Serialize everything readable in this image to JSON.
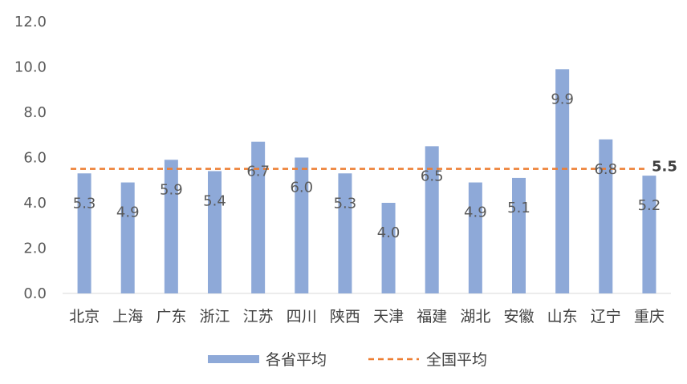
{
  "chart_data": {
    "type": "bar",
    "categories": [
      "北京",
      "上海",
      "广东",
      "浙江",
      "江苏",
      "四川",
      "陕西",
      "天津",
      "福建",
      "湖北",
      "安徽",
      "山东",
      "辽宁",
      "重庆"
    ],
    "series": [
      {
        "name": "各省平均",
        "type": "bar",
        "values": [
          5.3,
          4.9,
          5.9,
          5.4,
          6.7,
          6.0,
          5.3,
          4.0,
          6.5,
          4.9,
          5.1,
          9.9,
          6.8,
          5.2
        ],
        "color": "#8EA9D8"
      },
      {
        "name": "全国平均",
        "type": "line",
        "style": "dashed",
        "value": 5.5,
        "color": "#ED7D31"
      }
    ],
    "data_labels": [
      "5.3",
      "4.9",
      "5.9",
      "5.4",
      "6.7",
      "6.0",
      "5.3",
      "4.0",
      "6.5",
      "4.9",
      "5.1",
      "9.9",
      "6.8",
      "5.2"
    ],
    "average_label": "5.5",
    "y_ticks": [
      "0.0",
      "2.0",
      "4.0",
      "6.0",
      "8.0",
      "10.0",
      "12.0"
    ],
    "ylim": [
      0,
      12
    ],
    "grid": false,
    "legend_position": "bottom"
  }
}
